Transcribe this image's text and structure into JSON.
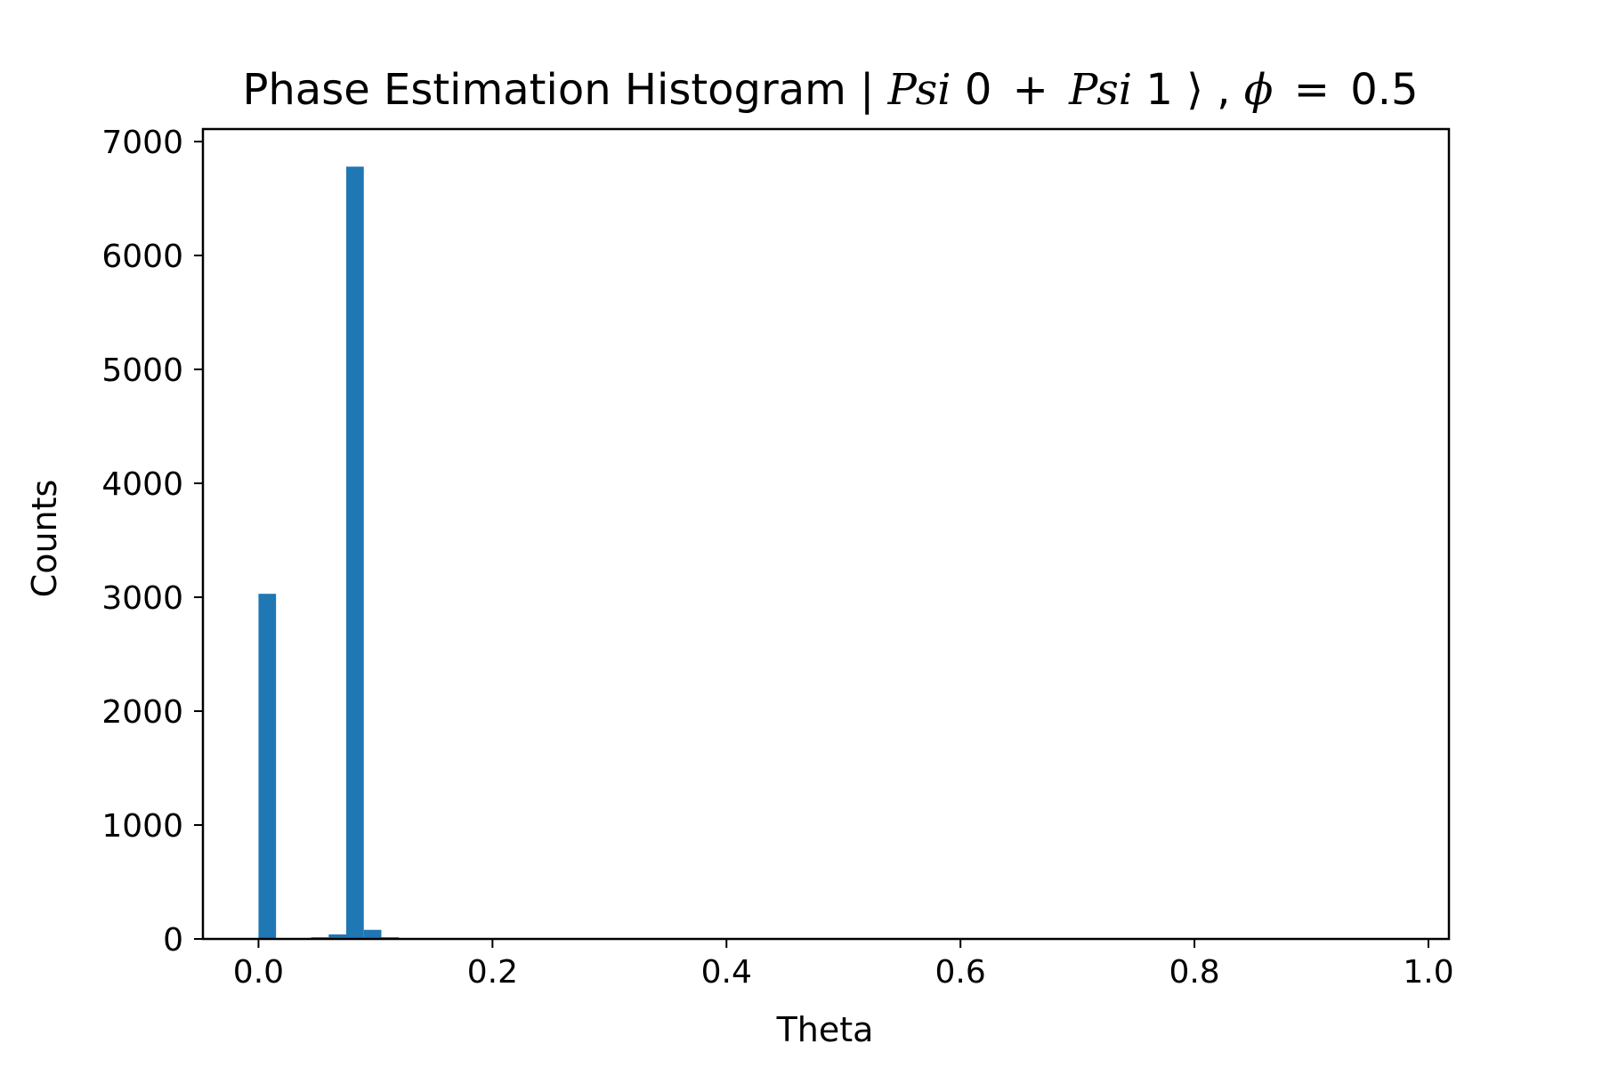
{
  "chart_data": {
    "type": "bar",
    "title": {
      "prefix": "Phase Estimation Histogram ",
      "ket_open": "|",
      "psi0": "Psi",
      "zero": "0",
      "plus": "+",
      "psi1": "Psi",
      "one": "1",
      "ket_close": "⟩",
      "separator": " ,",
      "phi": "ϕ",
      "equals": "=",
      "phi_value": "0.5"
    },
    "xlabel": "Theta",
    "ylabel": "Counts",
    "xlim": [
      -0.0475,
      1.0175
    ],
    "ylim": [
      0,
      7110
    ],
    "x_ticks": [
      {
        "value": 0.0,
        "label": "0.0"
      },
      {
        "value": 0.2,
        "label": "0.2"
      },
      {
        "value": 0.4,
        "label": "0.4"
      },
      {
        "value": 0.6,
        "label": "0.6"
      },
      {
        "value": 0.8,
        "label": "0.8"
      },
      {
        "value": 1.0,
        "label": "1.0"
      }
    ],
    "y_ticks": [
      {
        "value": 0,
        "label": "0"
      },
      {
        "value": 1000,
        "label": "1000"
      },
      {
        "value": 2000,
        "label": "2000"
      },
      {
        "value": 3000,
        "label": "3000"
      },
      {
        "value": 4000,
        "label": "4000"
      },
      {
        "value": 5000,
        "label": "5000"
      },
      {
        "value": 6000,
        "label": "6000"
      },
      {
        "value": 7000,
        "label": "7000"
      }
    ],
    "bin_width": 0.015,
    "bins": [
      {
        "x0": 0.0,
        "count": 3030
      },
      {
        "x0": 0.045,
        "count": 15
      },
      {
        "x0": 0.06,
        "count": 40
      },
      {
        "x0": 0.075,
        "count": 6780
      },
      {
        "x0": 0.09,
        "count": 80
      },
      {
        "x0": 0.105,
        "count": 15
      }
    ],
    "bar_color": "#1f77b4",
    "grid": false,
    "legend": "none"
  }
}
